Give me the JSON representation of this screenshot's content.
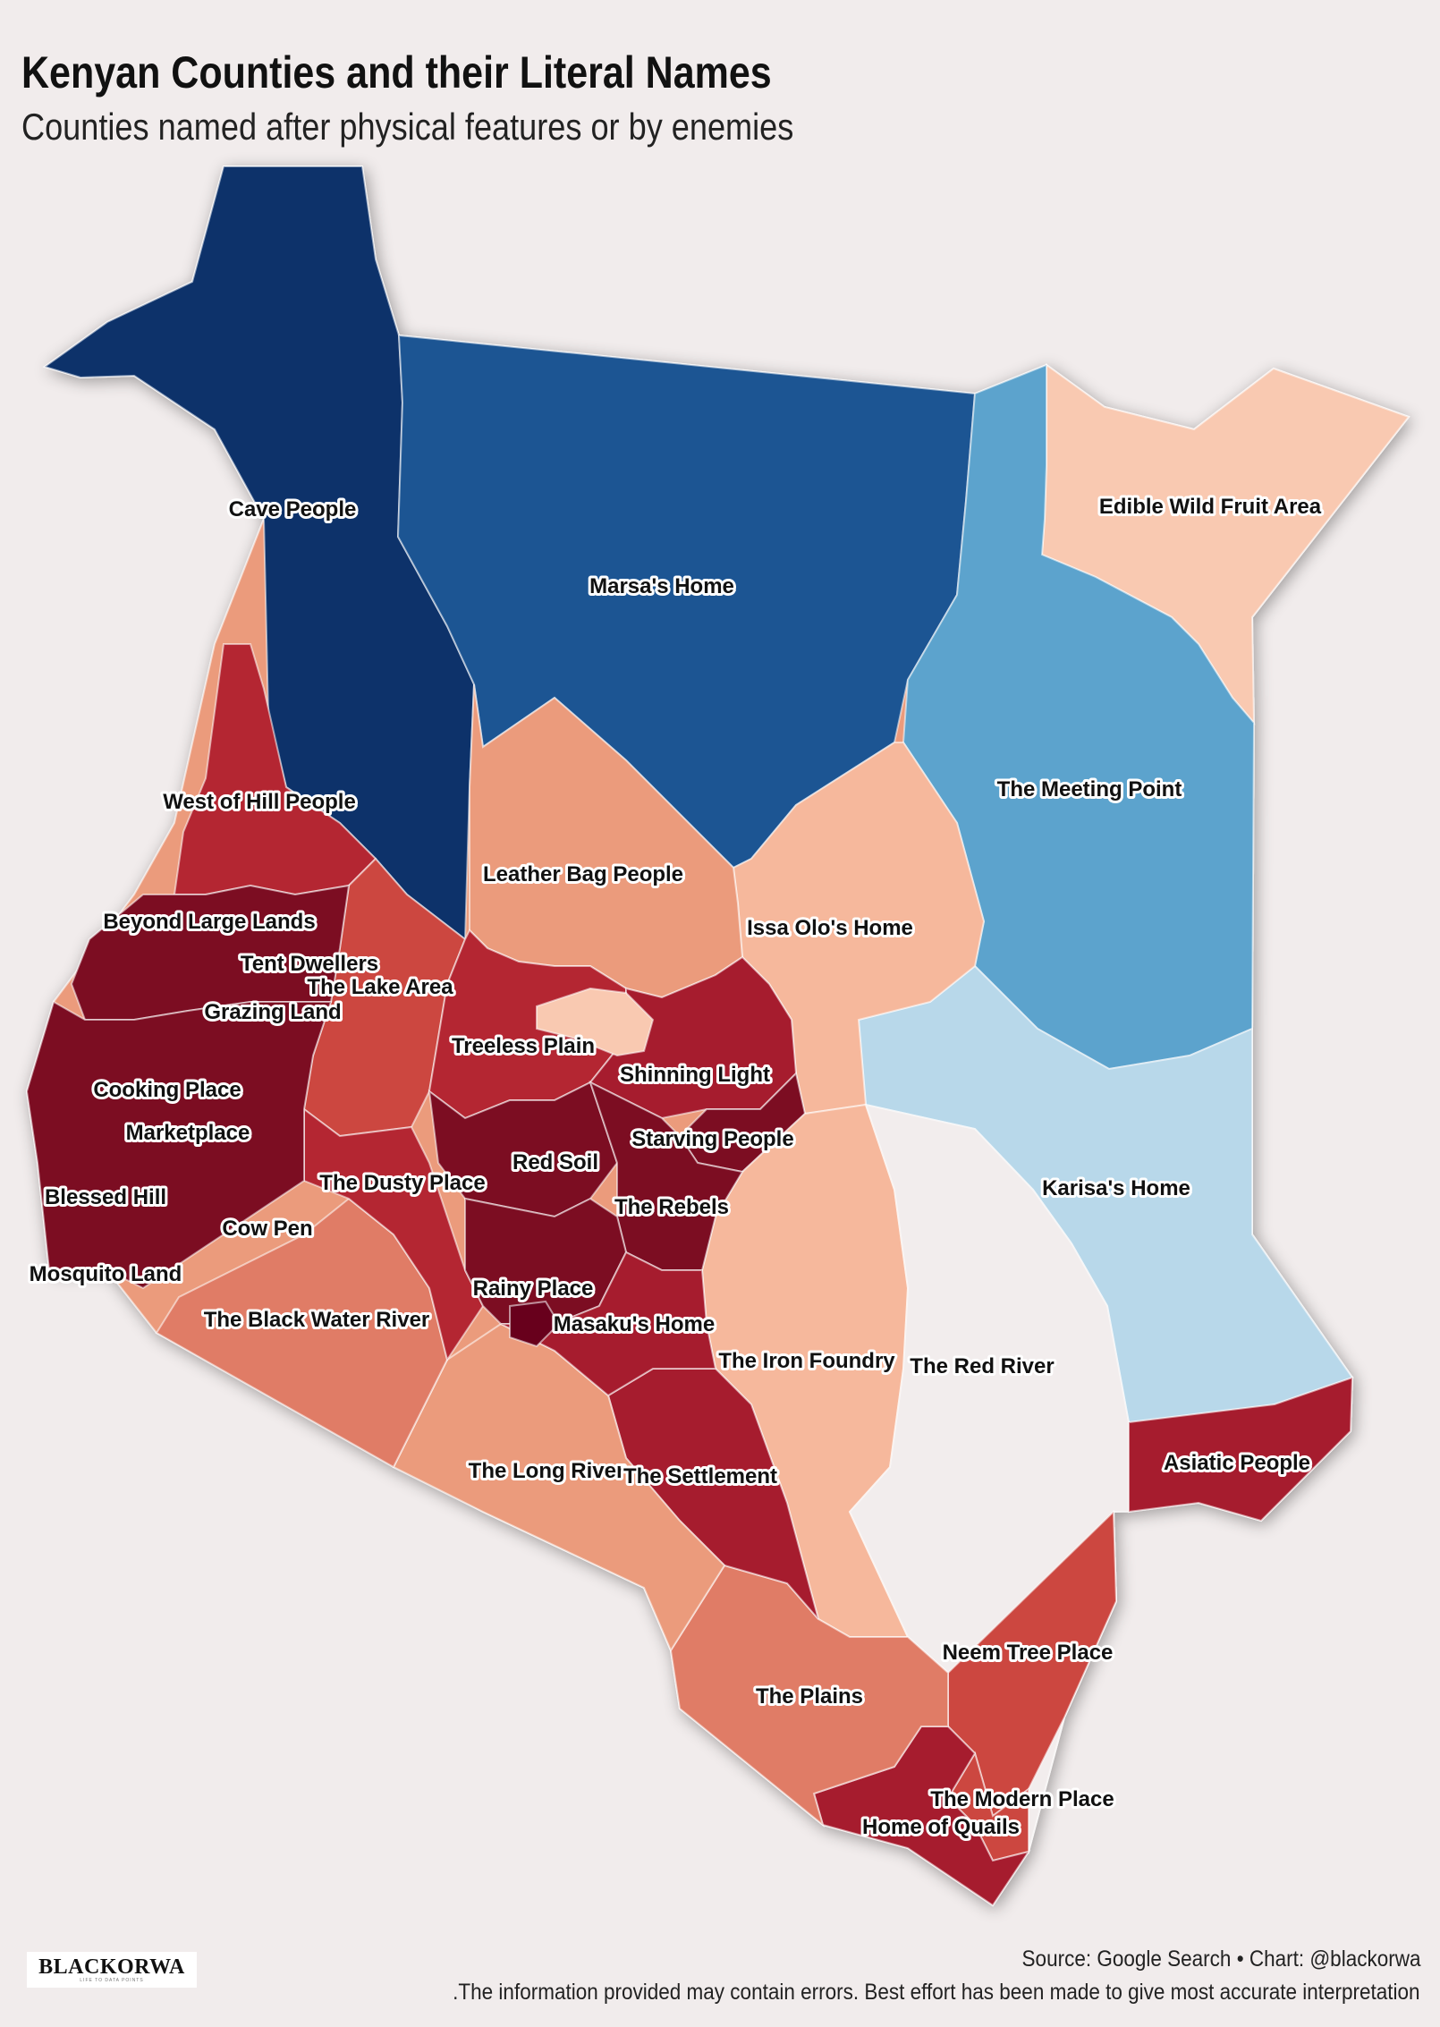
{
  "title": "Kenyan Counties and their Literal Names",
  "subtitle": "Counties named after physical features or by enemies",
  "source": "Source: Google Search • Chart: @blackorwa",
  "disclaimer": ".The information provided may contain errors. Best effort has been made to give most accurate interpretation",
  "logo": {
    "wordmark": "BLACKORWA",
    "tagline": "LIFE TO DATA POINTS"
  },
  "colors": {
    "background": "#f1ecec",
    "dark_blue": "#08306b",
    "blue": "#1b5493",
    "mid_blue": "#5ba3cd",
    "light_blue": "#b8d8ea",
    "neutral": "#f2eded",
    "pale_peach": "#f9c9b1",
    "light_salmon": "#f6b89c",
    "salmon": "#eb9b7c",
    "coral": "#e07c66",
    "red": "#cc4740",
    "crimson": "#b42832",
    "dark_crimson": "#a61c2d",
    "maroon": "#7b0a20",
    "deep_maroon": "#67001f"
  },
  "counties": [
    {
      "name": "Cave People",
      "color": "dark_blue"
    },
    {
      "name": "Marsa's Home",
      "color": "blue"
    },
    {
      "name": "Edible Wild Fruit Area",
      "color": "pale_peach"
    },
    {
      "name": "The Meeting Point",
      "color": "mid_blue"
    },
    {
      "name": "West of Hill People",
      "color": "crimson"
    },
    {
      "name": "Leather Bag People",
      "color": "salmon"
    },
    {
      "name": "Issa Olo's Home",
      "color": "light_salmon"
    },
    {
      "name": "Beyond Large Lands",
      "color": "maroon"
    },
    {
      "name": "Tent Dwellers",
      "color": "maroon"
    },
    {
      "name": "The Lake Area",
      "color": "red"
    },
    {
      "name": "Grazing Land",
      "color": "maroon"
    },
    {
      "name": "Treeless Plain",
      "color": "crimson"
    },
    {
      "name": "Shinning Light",
      "color": "dark_crimson"
    },
    {
      "name": "Cooking Place",
      "color": "maroon"
    },
    {
      "name": "Marketplace",
      "color": "maroon"
    },
    {
      "name": "Starving People",
      "color": "maroon"
    },
    {
      "name": "Red Soil",
      "color": "maroon"
    },
    {
      "name": "The Dusty Place",
      "color": "crimson"
    },
    {
      "name": "Karisa's Home",
      "color": "light_blue"
    },
    {
      "name": "Blessed Hill",
      "color": "maroon"
    },
    {
      "name": "The Rebels",
      "color": "maroon"
    },
    {
      "name": "Cow Pen",
      "color": "maroon"
    },
    {
      "name": "Mosquito Land",
      "color": "maroon"
    },
    {
      "name": "Rainy Place",
      "color": "maroon"
    },
    {
      "name": "The Black Water River",
      "color": "coral"
    },
    {
      "name": "Masaku's Home",
      "color": "dark_crimson"
    },
    {
      "name": "The Iron Foundry",
      "color": "light_salmon"
    },
    {
      "name": "The Red River",
      "color": "neutral"
    },
    {
      "name": "The Long River",
      "color": "salmon"
    },
    {
      "name": "The Settlement",
      "color": "dark_crimson"
    },
    {
      "name": "Asiatic People",
      "color": "dark_crimson"
    },
    {
      "name": "Neem Tree Place",
      "color": "red"
    },
    {
      "name": "The Plains",
      "color": "coral"
    },
    {
      "name": "The Modern Place",
      "color": "red"
    },
    {
      "name": "Home of Quails",
      "color": "dark_crimson"
    }
  ]
}
